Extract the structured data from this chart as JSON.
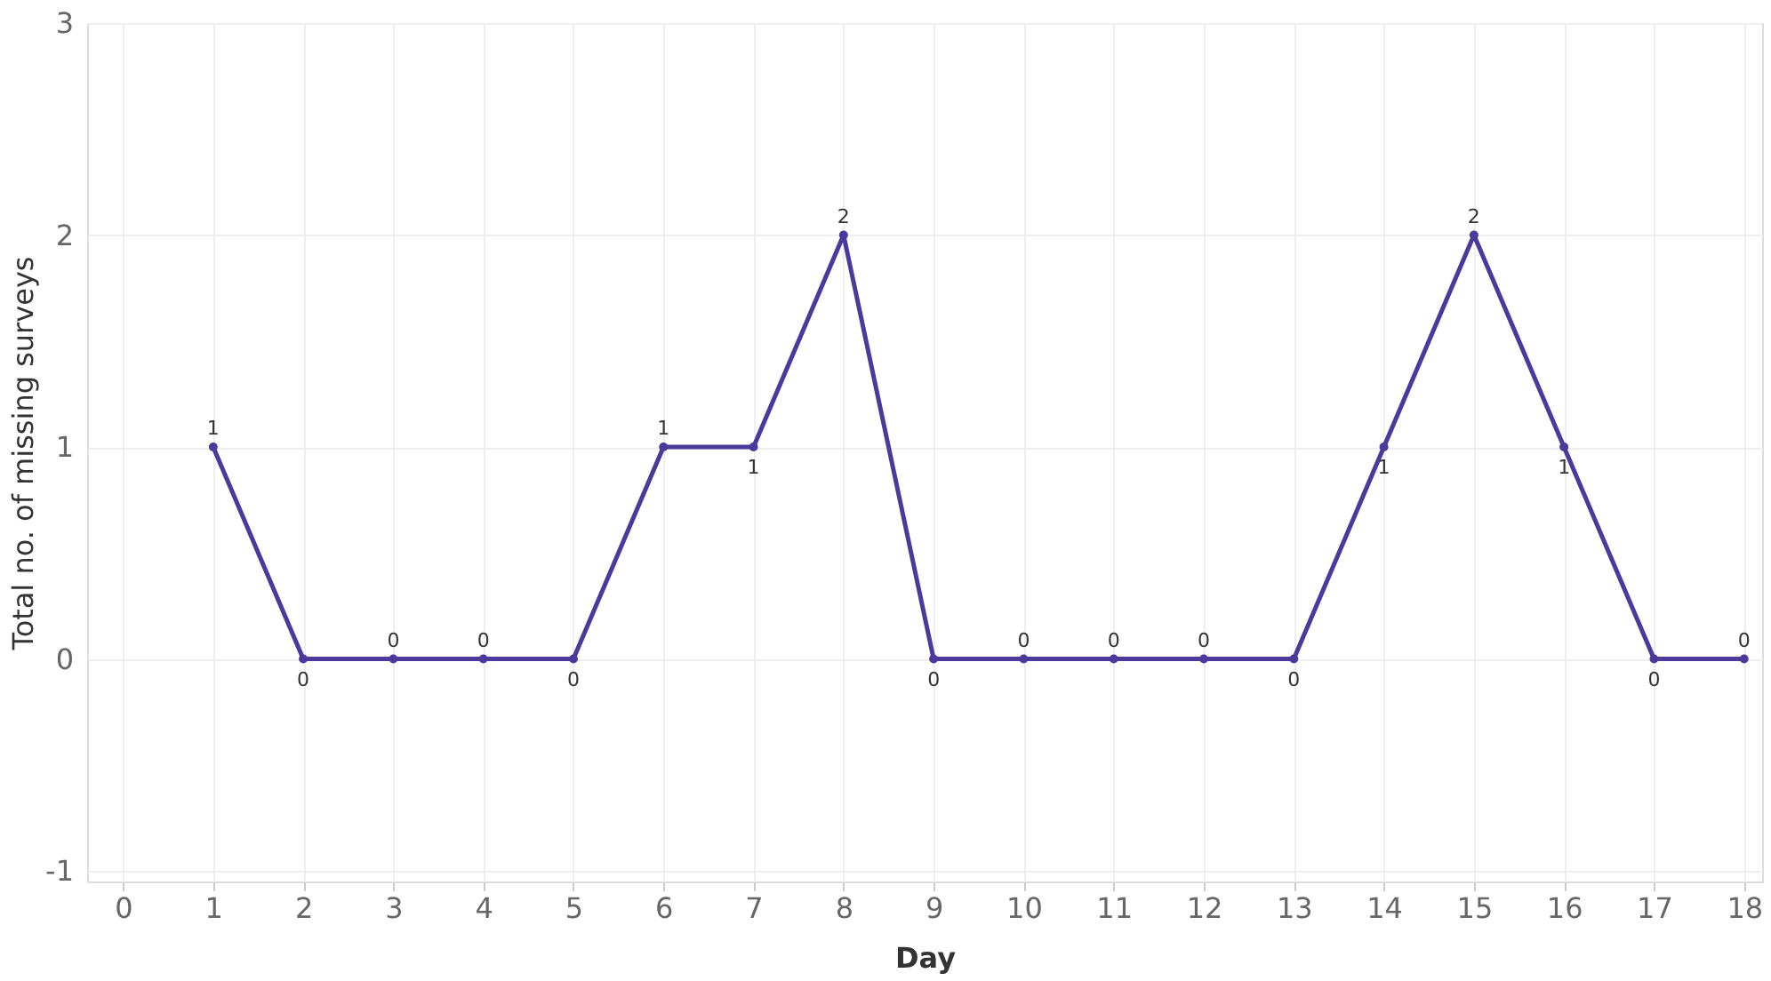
{
  "chart_data": {
    "type": "line",
    "xlabel": "Day",
    "ylabel": "Total no. of missing surveys",
    "x": [
      1,
      2,
      3,
      4,
      5,
      6,
      7,
      8,
      9,
      10,
      11,
      12,
      13,
      14,
      15,
      16,
      17,
      18
    ],
    "series": [
      {
        "color": "#4b3a9c",
        "values": [
          1,
          0,
          0,
          0,
          0,
          1,
          1,
          2,
          0,
          0,
          0,
          0,
          0,
          1,
          2,
          1,
          0,
          0
        ]
      }
    ],
    "xlim": [
      -0.4,
      18.2
    ],
    "xticks": [
      0,
      1,
      2,
      3,
      4,
      5,
      6,
      7,
      8,
      9,
      10,
      11,
      12,
      13,
      14,
      15,
      16,
      17,
      18
    ],
    "ylim": [
      -1.05,
      3
    ],
    "yticks": [
      -1,
      0,
      1,
      2,
      3
    ],
    "grid": true,
    "marker": "circle",
    "line_style": "solid",
    "data_labels": true
  }
}
